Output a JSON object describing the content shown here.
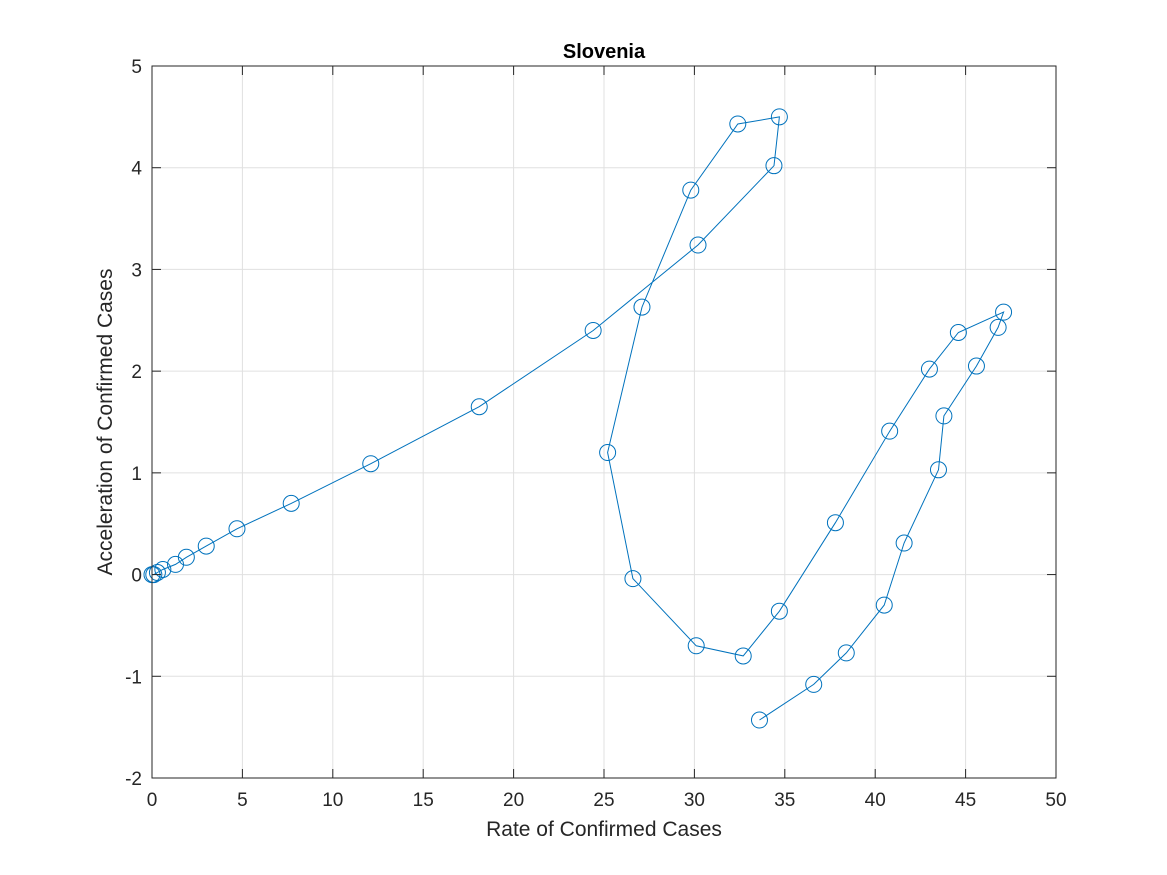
{
  "chart_data": {
    "type": "line",
    "title": "Slovenia",
    "xlabel": "Rate of Confirmed Cases",
    "ylabel": "Acceleration of Confirmed Cases",
    "xlim": [
      0,
      50
    ],
    "ylim": [
      -2,
      5
    ],
    "xticks": [
      0,
      5,
      10,
      15,
      20,
      25,
      30,
      35,
      40,
      45,
      50
    ],
    "yticks": [
      -2,
      -1,
      0,
      1,
      2,
      3,
      4,
      5
    ],
    "grid": true,
    "marker": "circle",
    "color": "#0072BD",
    "series": [
      {
        "points": [
          [
            0.0,
            0.0
          ],
          [
            0.1,
            0.0
          ],
          [
            0.3,
            0.02
          ],
          [
            0.6,
            0.05
          ],
          [
            1.3,
            0.1
          ],
          [
            1.9,
            0.17
          ],
          [
            3.0,
            0.28
          ],
          [
            4.7,
            0.45
          ],
          [
            7.7,
            0.7
          ],
          [
            12.1,
            1.09
          ],
          [
            18.1,
            1.65
          ],
          [
            24.4,
            2.4
          ],
          [
            30.2,
            3.24
          ],
          [
            34.4,
            4.02
          ],
          [
            34.7,
            4.5
          ],
          [
            32.4,
            4.43
          ],
          [
            29.8,
            3.78
          ],
          [
            27.1,
            2.63
          ],
          [
            25.2,
            1.2
          ],
          [
            26.6,
            -0.04
          ],
          [
            30.1,
            -0.7
          ],
          [
            32.7,
            -0.8
          ],
          [
            34.7,
            -0.36
          ],
          [
            37.8,
            0.51
          ],
          [
            40.8,
            1.41
          ],
          [
            43.0,
            2.02
          ],
          [
            44.6,
            2.38
          ],
          [
            47.1,
            2.58
          ],
          [
            46.8,
            2.43
          ],
          [
            45.6,
            2.05
          ],
          [
            43.8,
            1.56
          ],
          [
            43.5,
            1.03
          ],
          [
            41.6,
            0.31
          ],
          [
            40.5,
            -0.3
          ],
          [
            38.4,
            -0.77
          ],
          [
            36.6,
            -1.08
          ],
          [
            33.6,
            -1.43
          ]
        ]
      }
    ]
  }
}
